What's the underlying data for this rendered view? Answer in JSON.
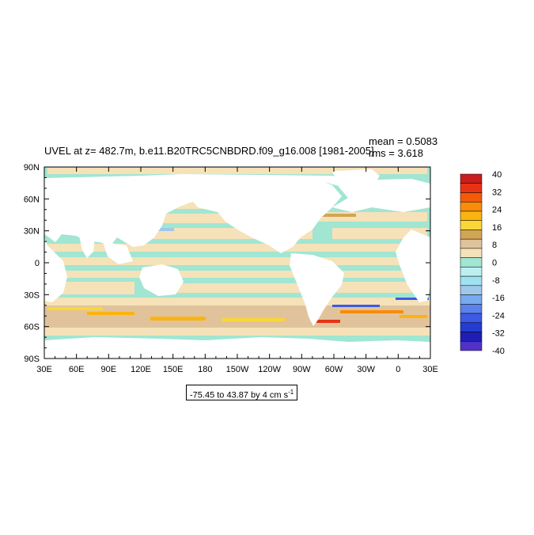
{
  "title": "UVEL at z= 482.7m, b.e11.B20TRC5CNBDRD.f09_g16.008 [1981-2005]",
  "stats": {
    "mean": "mean = 0.5083",
    "rms": "rms = 3.618"
  },
  "range_label": "-75.45 to 43.87 by 4 cm s",
  "range_unit_exp": "-1",
  "chart_data": {
    "type": "heatmap",
    "title": "UVEL at z= 482.7m, b.e11.B20TRC5CNBDRD.f09_g16.008 [1981-2005]",
    "xlabel": "",
    "ylabel": "",
    "x_ticks": [
      "30E",
      "60E",
      "90E",
      "120E",
      "150E",
      "180",
      "150W",
      "120W",
      "90W",
      "60W",
      "30W",
      "0",
      "30E"
    ],
    "y_ticks": [
      "90N",
      "60N",
      "30N",
      "0",
      "30S",
      "60S",
      "90S"
    ],
    "xlim": [
      30,
      390
    ],
    "ylim": [
      -90,
      90
    ],
    "mean": 0.5083,
    "rms": 3.618,
    "range": {
      "min": -75.45,
      "max": 43.87,
      "interval": 4,
      "units": "cm s-1"
    },
    "colorbar": {
      "labels": [
        "40",
        "32",
        "24",
        "16",
        "8",
        "0",
        "-8",
        "-16",
        "-24",
        "-32",
        "-40"
      ],
      "colors": [
        "#c81e1e",
        "#e83214",
        "#f55a0a",
        "#f98c0a",
        "#fbb40f",
        "#fad737",
        "#d2a555",
        "#e1c39b",
        "#f5e2b9",
        "#a0e6d2",
        "#bdeff0",
        "#9ee2f2",
        "#a0c8eb",
        "#78aaf0",
        "#5a82eb",
        "#3c5ae6",
        "#233cd2",
        "#1e1eb4",
        "#5032c8"
      ]
    }
  }
}
